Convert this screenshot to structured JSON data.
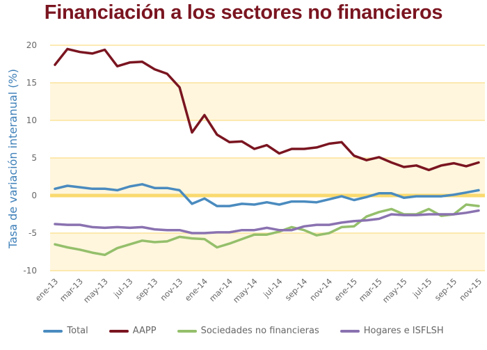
{
  "chart_data": {
    "type": "line",
    "title": "Financiación a los sectores no financieros",
    "xlabel": "",
    "ylabel": "Tasa de variación interanual (%)",
    "ylim": [
      -10,
      20
    ],
    "yticks": [
      20,
      15,
      10,
      5,
      0,
      -5,
      -10
    ],
    "shaded_bands": [
      [
        10,
        15
      ],
      [
        0,
        5
      ],
      [
        -10,
        -5
      ]
    ],
    "zero_line": true,
    "grid": true,
    "legend_position": "bottom",
    "x": [
      "ene-13",
      "feb-13",
      "mar-13",
      "abr-13",
      "may-13",
      "jun-13",
      "jul-13",
      "ago-13",
      "sep-13",
      "oct-13",
      "nov-13",
      "dic-13",
      "ene-14",
      "feb-14",
      "mar-14",
      "abr-14",
      "may-14",
      "jun-14",
      "jul-14",
      "ago-14",
      "sep-14",
      "oct-14",
      "nov-14",
      "dic-14",
      "ene-15",
      "feb-15",
      "mar-15",
      "abr-15",
      "may-15",
      "jun-15",
      "jul-15",
      "ago-15",
      "sep-15",
      "oct-15",
      "nov-15"
    ],
    "xtick_labels": [
      "ene-13",
      "mar-13",
      "may-13",
      "jul-13",
      "sep-13",
      "nov-13",
      "ene-14",
      "mar-14",
      "may-14",
      "jul-14",
      "sep-14",
      "nov-14",
      "ene-15",
      "mar-15",
      "may-15",
      "jul-15",
      "sep-15",
      "nov-15"
    ],
    "series": [
      {
        "name": "Total",
        "color": "#4a8bbf",
        "values": [
          0.9,
          1.3,
          1.1,
          0.9,
          0.9,
          0.7,
          1.2,
          1.5,
          1.0,
          1.0,
          0.7,
          -1.1,
          -0.4,
          -1.4,
          -1.4,
          -1.1,
          -1.2,
          -0.9,
          -1.2,
          -0.8,
          -0.8,
          -0.9,
          -0.5,
          -0.1,
          -0.6,
          -0.2,
          0.3,
          0.3,
          -0.3,
          -0.1,
          -0.1,
          -0.1,
          0.1,
          0.4,
          0.7
        ]
      },
      {
        "name": "AAPP",
        "color": "#7a1520",
        "values": [
          17.4,
          19.5,
          19.1,
          18.9,
          19.4,
          17.2,
          17.7,
          17.8,
          16.8,
          16.2,
          14.4,
          8.4,
          10.7,
          8.1,
          7.1,
          7.2,
          6.2,
          6.7,
          5.6,
          6.2,
          6.2,
          6.4,
          6.9,
          7.1,
          5.3,
          4.7,
          5.1,
          4.4,
          3.8,
          4.0,
          3.4,
          4.0,
          4.3,
          3.9,
          4.4
        ]
      },
      {
        "name": "Sociedades no financieras",
        "color": "#94bf6b",
        "values": [
          -6.5,
          -6.9,
          -7.2,
          -7.6,
          -7.9,
          -7.0,
          -6.5,
          -6.0,
          -6.2,
          -6.1,
          -5.5,
          -5.7,
          -5.8,
          -6.9,
          -6.4,
          -5.8,
          -5.2,
          -5.2,
          -4.8,
          -4.2,
          -4.6,
          -5.3,
          -5.0,
          -4.2,
          -4.1,
          -2.8,
          -2.2,
          -1.8,
          -2.5,
          -2.5,
          -1.8,
          -2.7,
          -2.5,
          -1.2,
          -1.4
        ]
      },
      {
        "name": "Hogares e ISFLSH",
        "color": "#8a72b0",
        "values": [
          -3.8,
          -3.9,
          -3.9,
          -4.2,
          -4.3,
          -4.2,
          -4.3,
          -4.2,
          -4.5,
          -4.6,
          -4.6,
          -5.0,
          -5.0,
          -4.9,
          -4.9,
          -4.6,
          -4.6,
          -4.3,
          -4.6,
          -4.6,
          -4.1,
          -3.9,
          -3.9,
          -3.6,
          -3.4,
          -3.3,
          -3.1,
          -2.5,
          -2.6,
          -2.6,
          -2.5,
          -2.5,
          -2.5,
          -2.3,
          -2.0
        ]
      }
    ],
    "colors": {
      "band_fill": "#fff6dd",
      "gridline": "#fbe49a",
      "zero_line": "#fada6e",
      "title": "#7a1520",
      "ylabel": "#3d7fb8"
    }
  }
}
